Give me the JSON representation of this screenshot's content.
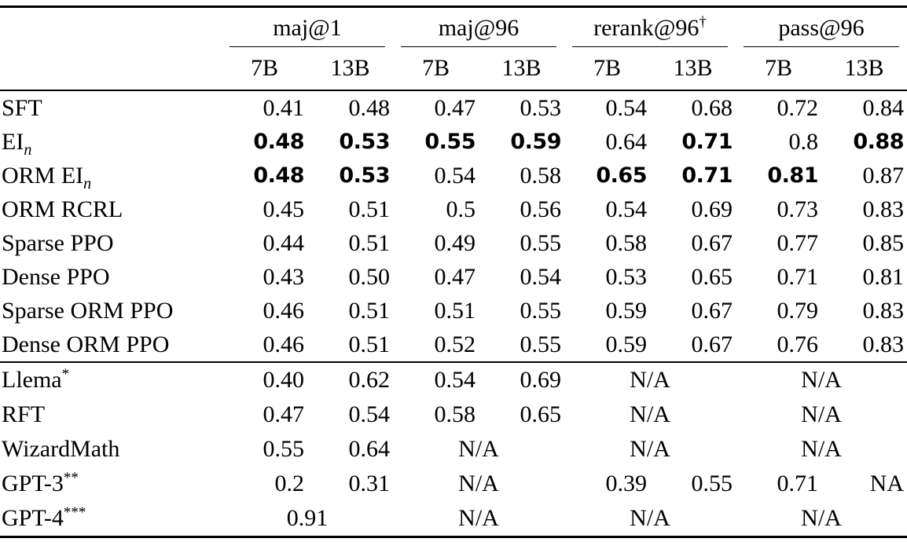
{
  "colors": {
    "text": "#000000",
    "background": "#ffffff",
    "rule": "#000000"
  },
  "table": {
    "column_groups": [
      {
        "label": "maj@1",
        "sup": ""
      },
      {
        "label": "maj@96",
        "sup": ""
      },
      {
        "label": "rerank@96",
        "sup": "†"
      },
      {
        "label": "pass@96",
        "sup": ""
      }
    ],
    "model_size_headers": [
      "7B",
      "13B"
    ],
    "sections": [
      {
        "rows": [
          {
            "label": "SFT",
            "label_sub": "",
            "label_sup": "",
            "cells": [
              {
                "v": "0.41"
              },
              {
                "v": "0.48"
              },
              {
                "v": "0.47"
              },
              {
                "v": "0.53"
              },
              {
                "v": "0.54"
              },
              {
                "v": "0.68"
              },
              {
                "v": "0.72"
              },
              {
                "v": "0.84"
              }
            ]
          },
          {
            "label": "EI",
            "label_sub": "n",
            "label_sup": "",
            "cells": [
              {
                "v": "0.48",
                "b": true
              },
              {
                "v": "0.53",
                "b": true
              },
              {
                "v": "0.55",
                "b": true
              },
              {
                "v": "0.59",
                "b": true
              },
              {
                "v": "0.64"
              },
              {
                "v": "0.71",
                "b": true
              },
              {
                "v": "0.8"
              },
              {
                "v": "0.88",
                "b": true
              }
            ]
          },
          {
            "label": "ORM EI",
            "label_sub": "n",
            "label_sup": "",
            "cells": [
              {
                "v": "0.48",
                "b": true
              },
              {
                "v": "0.53",
                "b": true
              },
              {
                "v": "0.54"
              },
              {
                "v": "0.58"
              },
              {
                "v": "0.65",
                "b": true
              },
              {
                "v": "0.71",
                "b": true
              },
              {
                "v": "0.81",
                "b": true
              },
              {
                "v": "0.87"
              }
            ]
          },
          {
            "label": "ORM RCRL",
            "label_sub": "",
            "label_sup": "",
            "cells": [
              {
                "v": "0.45"
              },
              {
                "v": "0.51"
              },
              {
                "v": "0.5"
              },
              {
                "v": "0.56"
              },
              {
                "v": "0.54"
              },
              {
                "v": "0.69"
              },
              {
                "v": "0.73"
              },
              {
                "v": "0.83"
              }
            ]
          },
          {
            "label": "Sparse PPO",
            "label_sub": "",
            "label_sup": "",
            "cells": [
              {
                "v": "0.44"
              },
              {
                "v": "0.51"
              },
              {
                "v": "0.49"
              },
              {
                "v": "0.55"
              },
              {
                "v": "0.58"
              },
              {
                "v": "0.67"
              },
              {
                "v": "0.77"
              },
              {
                "v": "0.85"
              }
            ]
          },
          {
            "label": "Dense PPO",
            "label_sub": "",
            "label_sup": "",
            "cells": [
              {
                "v": "0.43"
              },
              {
                "v": "0.50"
              },
              {
                "v": "0.47"
              },
              {
                "v": "0.54"
              },
              {
                "v": "0.53"
              },
              {
                "v": "0.65"
              },
              {
                "v": "0.71"
              },
              {
                "v": "0.81"
              }
            ]
          },
          {
            "label": "Sparse ORM PPO",
            "label_sub": "",
            "label_sup": "",
            "cells": [
              {
                "v": "0.46"
              },
              {
                "v": "0.51"
              },
              {
                "v": "0.51"
              },
              {
                "v": "0.55"
              },
              {
                "v": "0.59"
              },
              {
                "v": "0.67"
              },
              {
                "v": "0.79"
              },
              {
                "v": "0.83"
              }
            ]
          },
          {
            "label": "Dense ORM PPO",
            "label_sub": "",
            "label_sup": "",
            "cells": [
              {
                "v": "0.46"
              },
              {
                "v": "0.51"
              },
              {
                "v": "0.52"
              },
              {
                "v": "0.55"
              },
              {
                "v": "0.59"
              },
              {
                "v": "0.67"
              },
              {
                "v": "0.76"
              },
              {
                "v": "0.83"
              }
            ]
          }
        ]
      },
      {
        "rows": [
          {
            "label": "Llema",
            "label_sub": "",
            "label_sup": "*",
            "cells": [
              {
                "v": "0.40"
              },
              {
                "v": "0.62"
              },
              {
                "v": "0.54"
              },
              {
                "v": "0.69"
              },
              {
                "v": "N/A",
                "span": 2
              },
              {
                "v": "N/A",
                "span": 2
              }
            ]
          },
          {
            "label": "RFT",
            "label_sub": "",
            "label_sup": "",
            "cells": [
              {
                "v": "0.47"
              },
              {
                "v": "0.54"
              },
              {
                "v": "0.58"
              },
              {
                "v": "0.65"
              },
              {
                "v": "N/A",
                "span": 2
              },
              {
                "v": "N/A",
                "span": 2
              }
            ]
          },
          {
            "label": "WizardMath",
            "label_sub": "",
            "label_sup": "",
            "cells": [
              {
                "v": "0.55"
              },
              {
                "v": "0.64"
              },
              {
                "v": "N/A",
                "span": 2
              },
              {
                "v": "N/A",
                "span": 2
              },
              {
                "v": "N/A",
                "span": 2
              }
            ]
          },
          {
            "label": "GPT-3",
            "label_sub": "",
            "label_sup": "**",
            "cells": [
              {
                "v": "0.2"
              },
              {
                "v": "0.31"
              },
              {
                "v": "N/A",
                "span": 2
              },
              {
                "v": "0.39"
              },
              {
                "v": "0.55"
              },
              {
                "v": "0.71"
              },
              {
                "v": "NA"
              }
            ]
          },
          {
            "label": "GPT-4",
            "label_sub": "",
            "label_sup": "***",
            "cells": [
              {
                "v": "0.91",
                "span": 2
              },
              {
                "v": "N/A",
                "span": 2
              },
              {
                "v": "N/A",
                "span": 2
              },
              {
                "v": "N/A",
                "span": 2
              }
            ]
          }
        ]
      }
    ]
  }
}
